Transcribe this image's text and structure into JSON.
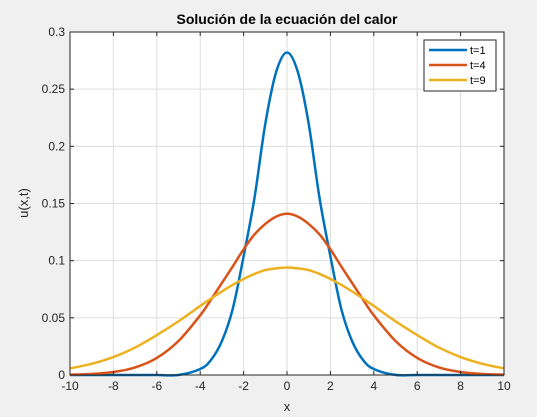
{
  "chart_data": {
    "type": "line",
    "title": "Solución de la ecuación del calor",
    "xlabel": "x",
    "ylabel": "u(x,t)",
    "xlim": [
      -10,
      10
    ],
    "ylim": [
      0,
      0.3
    ],
    "xticks": [
      -10,
      -8,
      -6,
      -4,
      -2,
      0,
      2,
      4,
      6,
      8,
      10
    ],
    "yticks": [
      0,
      0.05,
      0.1,
      0.15,
      0.2,
      0.25,
      0.3
    ],
    "xtick_labels": [
      "-10",
      "-8",
      "-6",
      "-4",
      "-2",
      "0",
      "2",
      "4",
      "6",
      "8",
      "10"
    ],
    "ytick_labels": [
      "0",
      "0.05",
      "0.1",
      "0.15",
      "0.2",
      "0.25",
      "0.3"
    ],
    "grid": true,
    "legend_position": "top-right",
    "x": [
      -10,
      -9,
      -8,
      -7,
      -6,
      -5,
      -4,
      -3.5,
      -3,
      -2.5,
      -2,
      -1.5,
      -1,
      -0.5,
      0,
      0.5,
      1,
      1.5,
      2,
      2.5,
      3,
      3.5,
      4,
      5,
      6,
      7,
      8,
      9,
      10
    ],
    "series": [
      {
        "name": "t=1",
        "color": "#0072bd",
        "values": [
          0,
          0,
          0,
          0,
          0,
          0.0,
          0.0052,
          0.0132,
          0.0296,
          0.0579,
          0.1038,
          0.1547,
          0.2197,
          0.265,
          0.2821,
          0.265,
          0.2197,
          0.1547,
          0.1038,
          0.0579,
          0.0296,
          0.0132,
          0.0052,
          0.0001,
          0,
          0,
          0,
          0,
          0
        ]
      },
      {
        "name": "t=4",
        "color": "#d95319",
        "values": [
          0.0003,
          0.0009,
          0.0026,
          0.0066,
          0.0149,
          0.0297,
          0.0522,
          0.066,
          0.0805,
          0.095,
          0.1099,
          0.1229,
          0.1321,
          0.1385,
          0.141,
          0.1385,
          0.1321,
          0.1229,
          0.1099,
          0.095,
          0.0805,
          0.066,
          0.0522,
          0.0297,
          0.0149,
          0.0066,
          0.0026,
          0.0009,
          0.0003
        ]
      },
      {
        "name": "t=9",
        "color": "#edb120",
        "values": [
          0.0058,
          0.0098,
          0.0157,
          0.024,
          0.0349,
          0.047,
          0.0604,
          0.0669,
          0.0731,
          0.0789,
          0.084,
          0.0884,
          0.0918,
          0.0933,
          0.094,
          0.0933,
          0.0918,
          0.0884,
          0.084,
          0.0789,
          0.0731,
          0.0669,
          0.0604,
          0.047,
          0.0349,
          0.024,
          0.0157,
          0.0098,
          0.0058
        ]
      }
    ]
  }
}
